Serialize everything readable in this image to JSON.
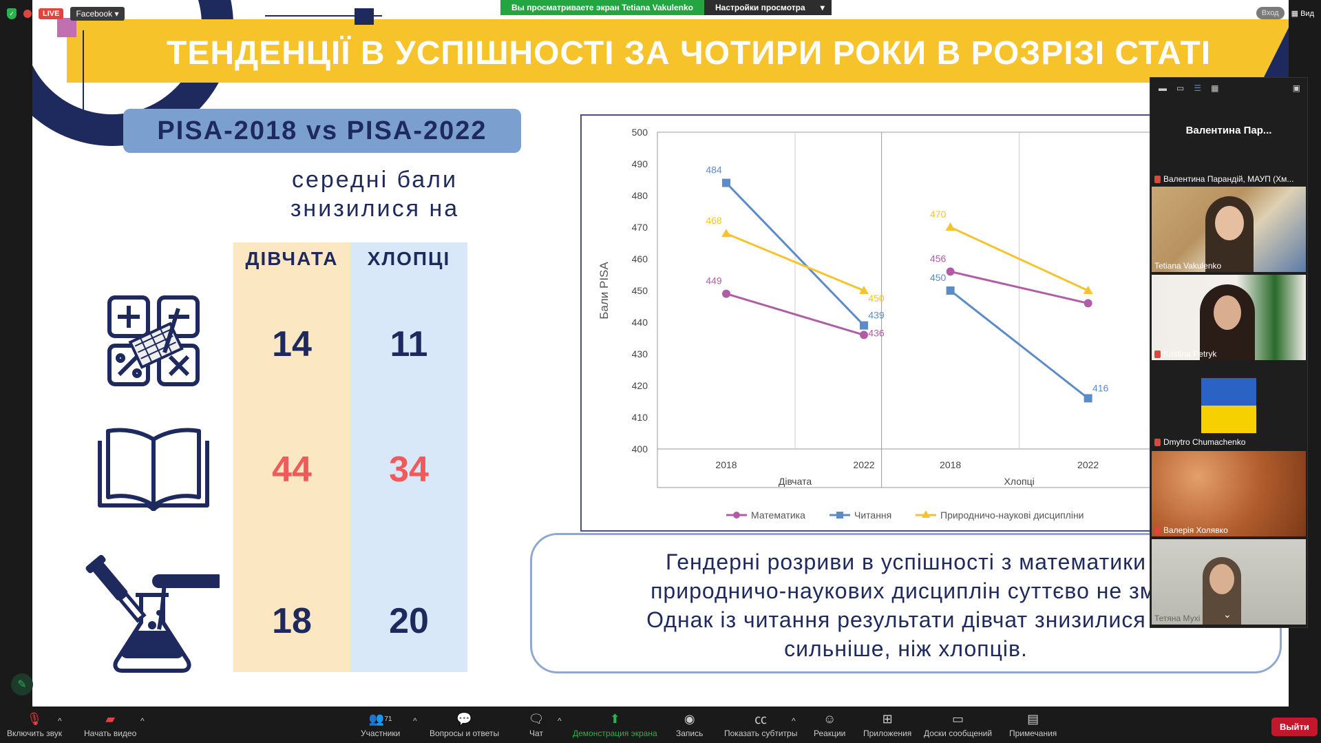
{
  "top_bar": {
    "live_label": "LIVE",
    "stream_target": "Facebook",
    "screen_share_notice": "Вы просматриваете экран Tetiana Vakulenko",
    "view_settings_label": "Настройки просмотра",
    "enter_label": "Вход",
    "view_label": "Вид"
  },
  "slide": {
    "title": "ТЕНДЕНЦІЇ В УСПІШНОСТІ ЗА ЧОТИРИ РОКИ В РОЗРІЗІ СТАТІ",
    "badge": "PISA-2018 vs PISA-2022",
    "subtitle_line1": "середні бали",
    "subtitle_line2": "знизилися на",
    "col_girls": "ДІВЧАТА",
    "col_boys": "ХЛОПЦІ",
    "rows": [
      {
        "subject_icon": "math-icon",
        "girls": "14",
        "boys": "11",
        "color": "#1e2a5e"
      },
      {
        "subject_icon": "book-icon",
        "girls": "44",
        "boys": "34",
        "color": "#f05a5a"
      },
      {
        "subject_icon": "science-icon",
        "girls": "18",
        "boys": "20",
        "color": "#1e2a5e"
      }
    ],
    "footnote_line1": "Гендерні розриви в успішності з математики",
    "footnote_line2": "природничо-наукових дисциплін суттєво не змі",
    "footnote_line3": "Однак із читання результати дівчат знизилися п",
    "footnote_line4": "сильніше, ніж хлопців."
  },
  "chart_data": {
    "type": "line",
    "ylabel": "Бали PISA",
    "ylim": [
      400,
      500
    ],
    "yticks": [
      "400",
      "410",
      "420",
      "430",
      "440",
      "450",
      "460",
      "470",
      "480",
      "490",
      "500"
    ],
    "groups": [
      {
        "name": "Дівчата",
        "x": [
          "2018",
          "2022"
        ]
      },
      {
        "name": "Хлопці",
        "x": [
          "2018",
          "2022"
        ]
      }
    ],
    "series": [
      {
        "name": "Математика",
        "color": "#b05ca6",
        "girls": [
          449,
          436
        ],
        "boys": [
          456,
          446
        ]
      },
      {
        "name": "Читання",
        "color": "#5b8cc8",
        "girls": [
          484,
          439
        ],
        "boys": [
          450,
          416
        ]
      },
      {
        "name": "Природничо-наукові дисципліни",
        "color": "#f6c330",
        "girls": [
          468,
          450
        ],
        "boys": [
          470,
          450
        ]
      }
    ],
    "labels": {
      "girls_math": [
        "449",
        "436"
      ],
      "girls_read": [
        "484",
        "439"
      ],
      "girls_sci": [
        "468",
        "450"
      ],
      "boys_math_2018": "456",
      "boys_read": [
        "450",
        "416"
      ],
      "boys_sci_2018": "470"
    },
    "legend": "bottom"
  },
  "panel": {
    "active_speaker": "Валентина Пар...",
    "participants": [
      {
        "name": "Валентина Парандій, МАУП (Хм...",
        "muted": true
      },
      {
        "name": "Tetiana Vakulenko",
        "muted": false
      },
      {
        "name": "Kristina Petryk",
        "muted": true
      },
      {
        "name": "Dmytro Chumachenko",
        "muted": true
      },
      {
        "name": "Валерія Холявко",
        "muted": true
      },
      {
        "name": "Тетяна Мухі",
        "muted": false
      }
    ]
  },
  "toolbar": {
    "unmute": "Включить звук",
    "start_video": "Начать видео",
    "participants": "Участники",
    "participants_count": "71",
    "qa": "Вопросы и ответы",
    "chat": "Чат",
    "share_screen": "Демонстрация экрана",
    "record": "Запись",
    "captions": "Показать субтитры",
    "reactions": "Реакции",
    "apps": "Приложения",
    "whiteboards": "Доски сообщений",
    "notes": "Примечания",
    "leave": "Выйти"
  }
}
